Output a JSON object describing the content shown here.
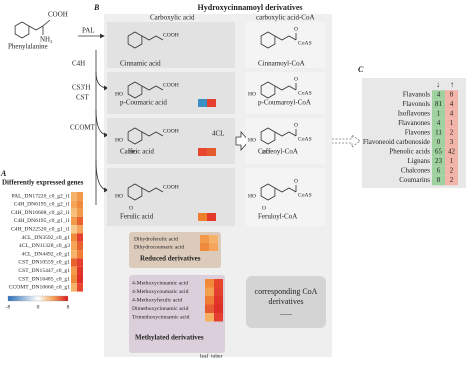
{
  "pathway": {
    "start": {
      "name": "Phenylalanine",
      "groups": [
        "COOH",
        "NH₂"
      ]
    },
    "enzymes": [
      "PAL",
      "C4H",
      "CS3'H",
      "CST",
      "CCOMT"
    ]
  },
  "panel_b": {
    "letter": "B",
    "title": "Hydroxycinnamoyl derivatives",
    "col_heads": [
      "Carboxylic acid",
      "carboxylic acid-CoA"
    ],
    "acids": [
      {
        "name": "Cinnamic acid",
        "tail": "COOH",
        "subs": [],
        "cells": []
      },
      {
        "name": "p-Coumaric acid",
        "tail": "COOH",
        "subs": [
          "HO"
        ],
        "cells": [
          "#3a8fc4",
          "#e5402f"
        ]
      },
      {
        "name": "Caffeic acid",
        "tail": "COOH",
        "subs": [
          "HO",
          "HO"
        ],
        "cells": [
          "#e8462e",
          "#e35a2c"
        ]
      },
      {
        "name": "Ferulic acid",
        "tail": "COOH",
        "subs": [
          "HO",
          "O"
        ],
        "cells": [
          "#f07f2d",
          "#e33a2b"
        ]
      }
    ],
    "coas": [
      {
        "name": "Cinnamoyl-CoA",
        "tail": "CoAS",
        "top": "O",
        "subs": []
      },
      {
        "name": "p-Coumaroyl-CoA",
        "tail": "CoAS",
        "top": "O",
        "subs": [
          "HO"
        ]
      },
      {
        "name": "Caffeoyl-CoA",
        "tail": "CoAS",
        "top": "O",
        "subs": [
          "HO",
          "HO"
        ]
      },
      {
        "name": "Feruloyl-CoA",
        "tail": "CoAS",
        "top": "O",
        "subs": [
          "HO",
          "O"
        ]
      }
    ],
    "enzyme": "4CL",
    "reduced": {
      "items": [
        "Dihydroferulic acid",
        "Dihydrocoumaric acid"
      ],
      "title": "Reduced derivatives",
      "cells": [
        [
          "#f39a4a",
          "#f6b26b"
        ],
        [
          "#ef8a3c",
          "#f4a55a"
        ]
      ]
    },
    "methylated": {
      "items": [
        "4-Methoxycinnamic acid",
        "4-Methoxycoumaric acid",
        "4-Methoxyferulic acid",
        "Dimethoxycinnamic acid",
        "Trimethoxycinnamic acid"
      ],
      "title": "Methylated derivatives",
      "cells": [
        [
          "#f08a3a",
          "#e8452d"
        ],
        [
          "#f39f4d",
          "#e5402f"
        ],
        [
          "#ef7d35",
          "#e2352a"
        ],
        [
          "#e85a30",
          "#df2f28"
        ],
        [
          "#f6b060",
          "#e5402f"
        ]
      ]
    },
    "tissues": [
      "leaf",
      "tuber"
    ],
    "coa_box": {
      "lines": [
        "corresponding CoA",
        "derivatives"
      ],
      "dots": "......"
    }
  },
  "panel_a": {
    "letter": "A",
    "title": "Differently expressed genes",
    "genes": [
      "PAL_DN17220_c0_g2_i1",
      "C4H_DN6195_c0_g2_i1",
      "C4H_DN16608_c0_g2_i1",
      "C4H_DN6195_c0_g1_i1",
      "C4H_DN22520_c0_g1_i1",
      "4CL_DN3592_c0_g1",
      "4CL_DN11328_c0_g3",
      "4CL_DN4492_c0_g1",
      "CST_DN10559_c0_g1",
      "CST_DN15447_c0_g1",
      "CST_DN16485_c0_g1",
      "CCOMT_DN10660_c0_g1"
    ],
    "heat": [
      [
        "#f6b26b",
        "#f39a4a"
      ],
      [
        "#f4a55a",
        "#ef8a3c"
      ],
      [
        "#f6c07a",
        "#f39a4a"
      ],
      [
        "#f39a4a",
        "#e8632f"
      ],
      [
        "#f7c98a",
        "#f4a55a"
      ],
      [
        "#ef8a3c",
        "#e5402f"
      ],
      [
        "#f4a55a",
        "#e8632f"
      ],
      [
        "#f6b26b",
        "#ef7d35"
      ],
      [
        "#e8632f",
        "#e5402f"
      ],
      [
        "#f39a4a",
        "#e2352a"
      ],
      [
        "#ef8a3c",
        "#df2f28"
      ],
      [
        "#f6b26b",
        "#e8462e"
      ]
    ],
    "legend": [
      -8,
      0,
      8
    ]
  },
  "panel_c": {
    "letter": "C",
    "headers": [
      "↓",
      "↑"
    ],
    "rows": [
      {
        "name": "Flavanols",
        "down": 4,
        "up": 8
      },
      {
        "name": "Flavonols",
        "down": 81,
        "up": 4
      },
      {
        "name": "Isoflavones",
        "down": 1,
        "up": 4
      },
      {
        "name": "Flavanones",
        "down": 4,
        "up": 1
      },
      {
        "name": "Flavones",
        "down": 11,
        "up": 2
      },
      {
        "name": "Flavoneoid carbonoside",
        "down": 0,
        "up": 3
      },
      {
        "name": "Phenolic acids",
        "down": 65,
        "up": 42
      },
      {
        "name": "Lignans",
        "down": 23,
        "up": 1
      },
      {
        "name": "Chalcones",
        "down": 6,
        "up": 2
      },
      {
        "name": "Coumarins",
        "down": 8,
        "up": 2
      }
    ]
  }
}
